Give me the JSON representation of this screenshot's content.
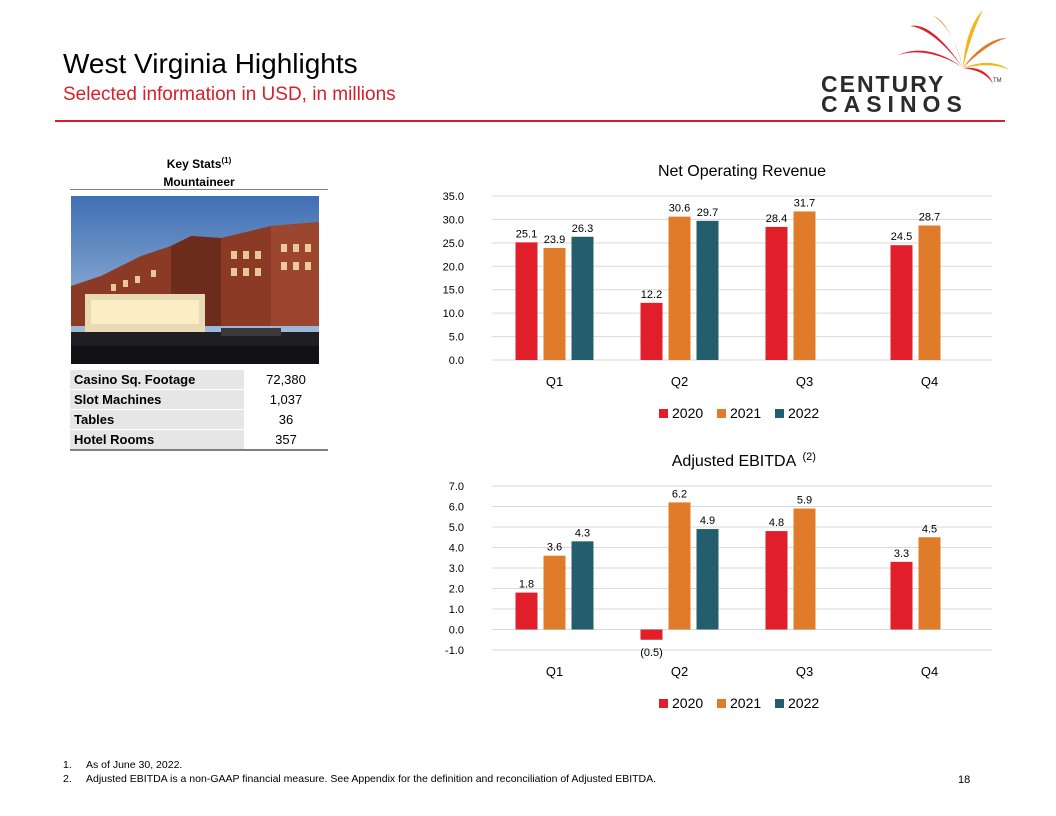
{
  "header": {
    "title": "West Virginia Highlights",
    "subtitle": "Selected information in USD, in millions"
  },
  "logo": {
    "line1": "CENTURY",
    "line2": "CASINOS",
    "tm": "TM"
  },
  "key_stats": {
    "heading": "Key Stats",
    "heading_sup": "(1)",
    "property": "Mountaineer",
    "rows": [
      {
        "label": "Casino Sq. Footage",
        "value": "72,380"
      },
      {
        "label": "Slot Machines",
        "value": "1,037"
      },
      {
        "label": "Tables",
        "value": "36"
      },
      {
        "label": "Hotel Rooms",
        "value": "357"
      }
    ]
  },
  "colors": {
    "2020": "#e01f2b",
    "2021": "#e07b2a",
    "2022": "#245e6e",
    "accent": "#d71f2a"
  },
  "chart_data": [
    {
      "type": "bar",
      "title": "Net Operating Revenue",
      "title_sup": "",
      "categories": [
        "Q1",
        "Q2",
        "Q3",
        "Q4"
      ],
      "series": [
        {
          "name": "2020",
          "values": [
            25.1,
            12.2,
            28.4,
            24.5
          ],
          "labels": [
            "25.1",
            "12.2",
            "28.4",
            "24.5"
          ]
        },
        {
          "name": "2021",
          "values": [
            23.9,
            30.6,
            31.7,
            28.7
          ],
          "labels": [
            "23.9",
            "30.6",
            "31.7",
            "28.7"
          ]
        },
        {
          "name": "2022",
          "values": [
            26.3,
            29.7,
            null,
            null
          ],
          "labels": [
            "26.3",
            "29.7",
            "",
            ""
          ]
        }
      ],
      "ylim": [
        0,
        35
      ],
      "yticks": [
        "0.0",
        "5.0",
        "10.0",
        "15.0",
        "20.0",
        "25.0",
        "30.0",
        "35.0"
      ],
      "grid": true,
      "legend": "bottom"
    },
    {
      "type": "bar",
      "title": "Adjusted EBITDA",
      "title_sup": "(2)",
      "categories": [
        "Q1",
        "Q2",
        "Q3",
        "Q4"
      ],
      "series": [
        {
          "name": "2020",
          "values": [
            1.8,
            -0.5,
            4.8,
            3.3
          ],
          "labels": [
            "1.8",
            "(0.5)",
            "4.8",
            "3.3"
          ]
        },
        {
          "name": "2021",
          "values": [
            3.6,
            6.2,
            5.9,
            4.5
          ],
          "labels": [
            "3.6",
            "6.2",
            "5.9",
            "4.5"
          ]
        },
        {
          "name": "2022",
          "values": [
            4.3,
            4.9,
            null,
            null
          ],
          "labels": [
            "4.3",
            "4.9",
            "",
            ""
          ]
        }
      ],
      "ylim": [
        -1,
        7
      ],
      "yticks": [
        "-1.0",
        "0.0",
        "1.0",
        "2.0",
        "3.0",
        "4.0",
        "5.0",
        "6.0",
        "7.0"
      ],
      "grid": true,
      "legend": "bottom"
    }
  ],
  "footnotes": [
    {
      "num": "1.",
      "text": "As of June 30, 2022."
    },
    {
      "num": "2.",
      "text": "Adjusted EBITDA is a non-GAAP financial measure. See Appendix for the definition and reconciliation of Adjusted EBITDA."
    }
  ],
  "page_number": "18"
}
